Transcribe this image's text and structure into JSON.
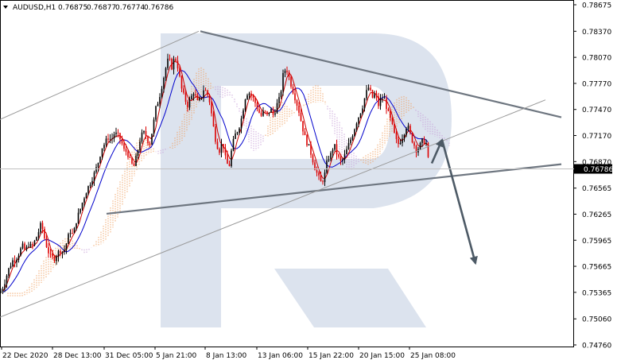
{
  "header": {
    "symbol_label": "AUDUSD,H1",
    "open": "0.76875",
    "high": "0.76877",
    "low": "0.76774",
    "close": "0.76786"
  },
  "current_price_label": "0.76786",
  "colors": {
    "up_candle": "#000000",
    "down_candle": "#dd0000",
    "kijun": "#0000cc",
    "tenkan": "#cc0000",
    "cloud_a": "#f0a060",
    "cloud_b": "#c8a0d8",
    "trendline": "#6e7680",
    "channel": "#9a9a9a",
    "arrow": "#4d5a66",
    "watermark": "#dce3ee",
    "price_tag_bg": "#000000"
  },
  "chart_data": {
    "type": "candlestick",
    "symbol": "AUDUSD",
    "timeframe": "H1",
    "y_ticks": [
      "0.78675",
      "0.78370",
      "0.78070",
      "0.77770",
      "0.77470",
      "0.77170",
      "0.76870",
      "0.76565",
      "0.76265",
      "0.75965",
      "0.75665",
      "0.75365",
      "0.75060",
      "0.74760"
    ],
    "x_ticks": [
      "22 Dec 2020",
      "28 Dec 13:00",
      "31 Dec 05:00",
      "5 Jan 21:00",
      "8 Jan 13:00",
      "13 Jan 06:00",
      "15 Jan 22:00",
      "20 Jan 15:00",
      "25 Jan 08:00"
    ],
    "ylim": [
      0.7476,
      0.78675
    ],
    "last_price": 0.76786,
    "price_path": [
      [
        0,
        0.7536
      ],
      [
        4,
        0.7543
      ],
      [
        8,
        0.7555
      ],
      [
        12,
        0.7566
      ],
      [
        16,
        0.7573
      ],
      [
        20,
        0.7575
      ],
      [
        24,
        0.7582
      ],
      [
        28,
        0.759
      ],
      [
        32,
        0.7584
      ],
      [
        36,
        0.7592
      ],
      [
        40,
        0.7588
      ],
      [
        44,
        0.7596
      ],
      [
        48,
        0.7605
      ],
      [
        52,
        0.7616
      ],
      [
        56,
        0.7599
      ],
      [
        60,
        0.7585
      ],
      [
        64,
        0.7577
      ],
      [
        68,
        0.7575
      ],
      [
        72,
        0.7581
      ],
      [
        76,
        0.7585
      ],
      [
        80,
        0.7583
      ],
      [
        84,
        0.7594
      ],
      [
        88,
        0.7608
      ],
      [
        92,
        0.7602
      ],
      [
        96,
        0.7619
      ],
      [
        100,
        0.763
      ],
      [
        104,
        0.7641
      ],
      [
        108,
        0.7652
      ],
      [
        112,
        0.766
      ],
      [
        116,
        0.7668
      ],
      [
        120,
        0.7676
      ],
      [
        124,
        0.7688
      ],
      [
        128,
        0.7703
      ],
      [
        132,
        0.7708
      ],
      [
        136,
        0.7715
      ],
      [
        140,
        0.7712
      ],
      [
        144,
        0.772
      ],
      [
        148,
        0.7717
      ],
      [
        152,
        0.7712
      ],
      [
        156,
        0.77
      ],
      [
        160,
        0.7698
      ],
      [
        164,
        0.7687
      ],
      [
        168,
        0.768
      ],
      [
        172,
        0.7694
      ],
      [
        176,
        0.7712
      ],
      [
        180,
        0.7721
      ],
      [
        184,
        0.7716
      ],
      [
        188,
        0.7706
      ],
      [
        192,
        0.7725
      ],
      [
        196,
        0.7748
      ],
      [
        200,
        0.776
      ],
      [
        204,
        0.7776
      ],
      [
        208,
        0.7793
      ],
      [
        212,
        0.7806
      ],
      [
        216,
        0.7796
      ],
      [
        220,
        0.7808
      ],
      [
        224,
        0.7795
      ],
      [
        228,
        0.7772
      ],
      [
        232,
        0.776
      ],
      [
        236,
        0.7752
      ],
      [
        240,
        0.776
      ],
      [
        244,
        0.7768
      ],
      [
        248,
        0.7755
      ],
      [
        252,
        0.7758
      ],
      [
        256,
        0.777
      ],
      [
        260,
        0.7767
      ],
      [
        264,
        0.7755
      ],
      [
        268,
        0.7729
      ],
      [
        272,
        0.7708
      ],
      [
        276,
        0.77
      ],
      [
        280,
        0.771
      ],
      [
        284,
        0.7688
      ],
      [
        288,
        0.768
      ],
      [
        292,
        0.7705
      ],
      [
        296,
        0.7718
      ],
      [
        300,
        0.7725
      ],
      [
        304,
        0.7738
      ],
      [
        308,
        0.776
      ],
      [
        312,
        0.7768
      ],
      [
        316,
        0.7763
      ],
      [
        320,
        0.7757
      ],
      [
        324,
        0.7748
      ],
      [
        328,
        0.7739
      ],
      [
        332,
        0.7745
      ],
      [
        336,
        0.774
      ],
      [
        340,
        0.7748
      ],
      [
        344,
        0.774
      ],
      [
        348,
        0.7752
      ],
      [
        352,
        0.776
      ],
      [
        356,
        0.7786
      ],
      [
        360,
        0.7796
      ],
      [
        364,
        0.7782
      ],
      [
        368,
        0.777
      ],
      [
        372,
        0.7758
      ],
      [
        376,
        0.7745
      ],
      [
        380,
        0.7728
      ],
      [
        384,
        0.7713
      ],
      [
        388,
        0.7705
      ],
      [
        392,
        0.7694
      ],
      [
        396,
        0.768
      ],
      [
        400,
        0.767
      ],
      [
        404,
        0.7662
      ],
      [
        408,
        0.767
      ],
      [
        412,
        0.769
      ],
      [
        416,
        0.7695
      ],
      [
        420,
        0.7707
      ],
      [
        424,
        0.7695
      ],
      [
        428,
        0.7686
      ],
      [
        432,
        0.769
      ],
      [
        436,
        0.77
      ],
      [
        440,
        0.771
      ],
      [
        444,
        0.772
      ],
      [
        448,
        0.7732
      ],
      [
        452,
        0.7741
      ],
      [
        456,
        0.7751
      ],
      [
        460,
        0.7765
      ],
      [
        464,
        0.7773
      ],
      [
        468,
        0.776
      ],
      [
        472,
        0.7765
      ],
      [
        476,
        0.7752
      ],
      [
        480,
        0.7761
      ],
      [
        484,
        0.7758
      ],
      [
        488,
        0.7743
      ],
      [
        492,
        0.7733
      ],
      [
        496,
        0.7718
      ],
      [
        500,
        0.7706
      ],
      [
        504,
        0.7712
      ],
      [
        508,
        0.772
      ],
      [
        512,
        0.773
      ],
      [
        516,
        0.7718
      ],
      [
        520,
        0.7708
      ],
      [
        524,
        0.77
      ],
      [
        528,
        0.7705
      ],
      [
        532,
        0.7712
      ],
      [
        536,
        0.7708
      ],
      [
        540,
        0.7678
      ]
    ],
    "series": [
      {
        "name": "Ichimoku"
      }
    ],
    "annotations": [
      {
        "type": "trendline",
        "from": [
          252,
          0.7837
        ],
        "to": [
          706,
          0.7738
        ]
      },
      {
        "type": "trendline",
        "from": [
          134,
          0.7627
        ],
        "to": [
          706,
          0.7684
        ]
      },
      {
        "type": "channel_line",
        "from": [
          0,
          0.77355
        ],
        "to": [
          250,
          0.7837
        ]
      },
      {
        "type": "channel_line",
        "from": [
          0,
          0.7508
        ],
        "to": [
          686,
          0.7758
        ]
      },
      {
        "type": "arrow",
        "from": [
          543,
          0.7685
        ],
        "to": [
          556,
          0.7712
        ]
      },
      {
        "type": "arrow",
        "from": [
          556,
          0.7712
        ],
        "to": [
          598,
          0.757
        ]
      }
    ],
    "grid": false,
    "legend": "none"
  }
}
